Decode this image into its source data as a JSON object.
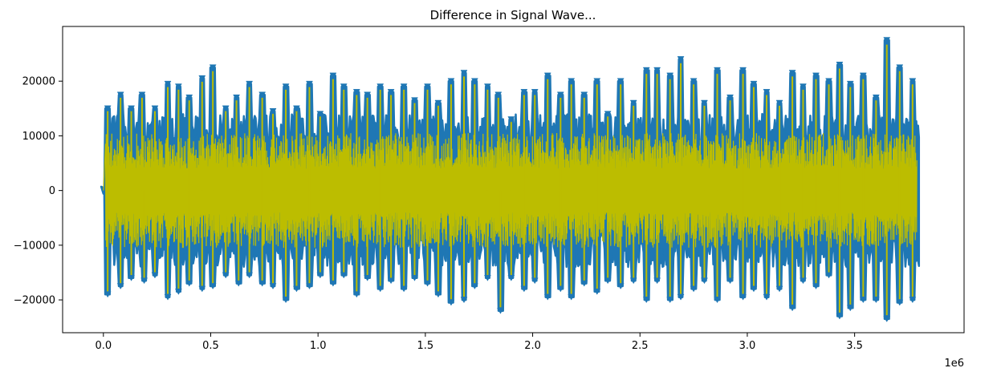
{
  "chart_data": {
    "type": "line",
    "title": "Difference in Signal Wave...",
    "xlabel": "",
    "ylabel": "",
    "x_offset_label": "1e6",
    "xlim": [
      -0.19,
      4.01
    ],
    "ylim": [
      -26000,
      30000
    ],
    "x_ticks": [
      0.0,
      0.5,
      1.0,
      1.5,
      2.0,
      2.5,
      3.0,
      3.5
    ],
    "x_tick_labels": [
      "0.0",
      "0.5",
      "1.0",
      "1.5",
      "2.0",
      "2.5",
      "3.0",
      "3.5"
    ],
    "y_ticks": [
      -20000,
      -10000,
      0,
      10000,
      20000
    ],
    "y_tick_labels": [
      "−20000",
      "−10000",
      "0",
      "10000",
      "20000"
    ],
    "grid": false,
    "colors": {
      "signal": "#1f77b4",
      "difference": "#bcbd00"
    },
    "signal_extent": [
      0.0,
      3.8
    ],
    "peak_markers_top": [
      {
        "x": 0.02,
        "y": 15000
      },
      {
        "x": 0.08,
        "y": 17500
      },
      {
        "x": 0.13,
        "y": 15000
      },
      {
        "x": 0.18,
        "y": 17500
      },
      {
        "x": 0.24,
        "y": 15000
      },
      {
        "x": 0.3,
        "y": 19500
      },
      {
        "x": 0.35,
        "y": 19000
      },
      {
        "x": 0.4,
        "y": 17000
      },
      {
        "x": 0.46,
        "y": 20500
      },
      {
        "x": 0.51,
        "y": 22500
      },
      {
        "x": 0.57,
        "y": 15000
      },
      {
        "x": 0.62,
        "y": 17000
      },
      {
        "x": 0.68,
        "y": 19500
      },
      {
        "x": 0.74,
        "y": 17500
      },
      {
        "x": 0.79,
        "y": 14500
      },
      {
        "x": 0.85,
        "y": 19000
      },
      {
        "x": 0.9,
        "y": 15000
      },
      {
        "x": 0.96,
        "y": 19500
      },
      {
        "x": 1.01,
        "y": 14000
      },
      {
        "x": 1.07,
        "y": 21000
      },
      {
        "x": 1.12,
        "y": 19000
      },
      {
        "x": 1.18,
        "y": 18000
      },
      {
        "x": 1.23,
        "y": 17500
      },
      {
        "x": 1.29,
        "y": 19000
      },
      {
        "x": 1.34,
        "y": 18000
      },
      {
        "x": 1.4,
        "y": 19000
      },
      {
        "x": 1.45,
        "y": 16500
      },
      {
        "x": 1.51,
        "y": 19000
      },
      {
        "x": 1.56,
        "y": 16000
      },
      {
        "x": 1.62,
        "y": 20000
      },
      {
        "x": 1.68,
        "y": 21500
      },
      {
        "x": 1.73,
        "y": 20000
      },
      {
        "x": 1.79,
        "y": 19000
      },
      {
        "x": 1.84,
        "y": 17500
      },
      {
        "x": 1.9,
        "y": 13000
      },
      {
        "x": 1.96,
        "y": 18000
      },
      {
        "x": 2.01,
        "y": 18000
      },
      {
        "x": 2.07,
        "y": 21000
      },
      {
        "x": 2.13,
        "y": 17500
      },
      {
        "x": 2.18,
        "y": 20000
      },
      {
        "x": 2.24,
        "y": 17500
      },
      {
        "x": 2.3,
        "y": 20000
      },
      {
        "x": 2.35,
        "y": 14000
      },
      {
        "x": 2.41,
        "y": 20000
      },
      {
        "x": 2.47,
        "y": 16000
      },
      {
        "x": 2.53,
        "y": 22000
      },
      {
        "x": 2.58,
        "y": 22000
      },
      {
        "x": 2.64,
        "y": 21000
      },
      {
        "x": 2.69,
        "y": 24000
      },
      {
        "x": 2.75,
        "y": 20000
      },
      {
        "x": 2.8,
        "y": 16000
      },
      {
        "x": 2.86,
        "y": 22000
      },
      {
        "x": 2.92,
        "y": 17000
      },
      {
        "x": 2.98,
        "y": 22000
      },
      {
        "x": 3.03,
        "y": 19500
      },
      {
        "x": 3.09,
        "y": 18000
      },
      {
        "x": 3.15,
        "y": 16000
      },
      {
        "x": 3.21,
        "y": 21500
      },
      {
        "x": 3.26,
        "y": 19000
      },
      {
        "x": 3.32,
        "y": 21000
      },
      {
        "x": 3.38,
        "y": 20000
      },
      {
        "x": 3.43,
        "y": 23000
      },
      {
        "x": 3.48,
        "y": 19500
      },
      {
        "x": 3.54,
        "y": 21000
      },
      {
        "x": 3.6,
        "y": 17000
      },
      {
        "x": 3.65,
        "y": 27500
      },
      {
        "x": 3.71,
        "y": 22500
      },
      {
        "x": 3.77,
        "y": 20000
      }
    ],
    "peak_markers_bottom": [
      {
        "x": 0.02,
        "y": -19000
      },
      {
        "x": 0.08,
        "y": -17500
      },
      {
        "x": 0.13,
        "y": -16000
      },
      {
        "x": 0.19,
        "y": -16500
      },
      {
        "x": 0.24,
        "y": -15500
      },
      {
        "x": 0.3,
        "y": -19500
      },
      {
        "x": 0.35,
        "y": -18500
      },
      {
        "x": 0.4,
        "y": -17000
      },
      {
        "x": 0.46,
        "y": -18000
      },
      {
        "x": 0.51,
        "y": -17500
      },
      {
        "x": 0.57,
        "y": -15500
      },
      {
        "x": 0.63,
        "y": -17000
      },
      {
        "x": 0.68,
        "y": -15500
      },
      {
        "x": 0.74,
        "y": -17000
      },
      {
        "x": 0.79,
        "y": -17500
      },
      {
        "x": 0.85,
        "y": -20000
      },
      {
        "x": 0.9,
        "y": -18000
      },
      {
        "x": 0.96,
        "y": -17500
      },
      {
        "x": 1.01,
        "y": -15500
      },
      {
        "x": 1.07,
        "y": -17000
      },
      {
        "x": 1.12,
        "y": -15500
      },
      {
        "x": 1.18,
        "y": -19000
      },
      {
        "x": 1.23,
        "y": -16000
      },
      {
        "x": 1.29,
        "y": -18000
      },
      {
        "x": 1.34,
        "y": -16500
      },
      {
        "x": 1.4,
        "y": -18000
      },
      {
        "x": 1.45,
        "y": -16000
      },
      {
        "x": 1.51,
        "y": -17000
      },
      {
        "x": 1.56,
        "y": -19000
      },
      {
        "x": 1.62,
        "y": -20500
      },
      {
        "x": 1.68,
        "y": -20000
      },
      {
        "x": 1.73,
        "y": -17500
      },
      {
        "x": 1.79,
        "y": -16000
      },
      {
        "x": 1.85,
        "y": -22000
      },
      {
        "x": 1.9,
        "y": -16000
      },
      {
        "x": 1.96,
        "y": -18000
      },
      {
        "x": 2.01,
        "y": -16500
      },
      {
        "x": 2.07,
        "y": -19500
      },
      {
        "x": 2.13,
        "y": -18000
      },
      {
        "x": 2.18,
        "y": -19500
      },
      {
        "x": 2.24,
        "y": -17000
      },
      {
        "x": 2.3,
        "y": -18500
      },
      {
        "x": 2.35,
        "y": -16500
      },
      {
        "x": 2.41,
        "y": -17500
      },
      {
        "x": 2.47,
        "y": -16500
      },
      {
        "x": 2.53,
        "y": -20000
      },
      {
        "x": 2.58,
        "y": -16500
      },
      {
        "x": 2.64,
        "y": -20000
      },
      {
        "x": 2.69,
        "y": -19500
      },
      {
        "x": 2.75,
        "y": -18000
      },
      {
        "x": 2.8,
        "y": -16500
      },
      {
        "x": 2.86,
        "y": -20000
      },
      {
        "x": 2.92,
        "y": -16500
      },
      {
        "x": 2.98,
        "y": -19500
      },
      {
        "x": 3.03,
        "y": -18000
      },
      {
        "x": 3.09,
        "y": -19500
      },
      {
        "x": 3.15,
        "y": -18000
      },
      {
        "x": 3.21,
        "y": -21500
      },
      {
        "x": 3.26,
        "y": -16500
      },
      {
        "x": 3.32,
        "y": -17500
      },
      {
        "x": 3.38,
        "y": -15500
      },
      {
        "x": 3.43,
        "y": -23000
      },
      {
        "x": 3.48,
        "y": -21500
      },
      {
        "x": 3.54,
        "y": -20000
      },
      {
        "x": 3.6,
        "y": -20000
      },
      {
        "x": 3.65,
        "y": -23500
      },
      {
        "x": 3.71,
        "y": -20500
      },
      {
        "x": 3.77,
        "y": -20000
      }
    ]
  }
}
